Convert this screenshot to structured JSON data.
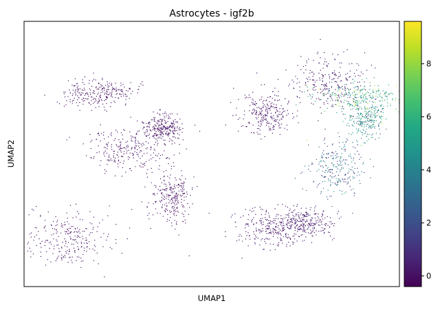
{
  "chart_data": {
    "type": "scatter",
    "title": "Astrocytes - igf2b",
    "xlabel": "UMAP1",
    "ylabel": "UMAP2",
    "show_axis_ticks": false,
    "grid": false,
    "colormap": "viridis",
    "colorbar": {
      "range": [
        -0.4,
        9.6
      ],
      "ticks": [
        0,
        2,
        4,
        6,
        8
      ],
      "tick_labels": [
        "0",
        "2",
        "4",
        "6",
        "8"
      ]
    },
    "colors": {
      "low": "#440154",
      "mid": "#21918c",
      "high": "#fde725"
    },
    "clusters": [
      {
        "x": 0.37,
        "y": 0.4,
        "value": 0.1
      },
      {
        "x": 0.64,
        "y": 0.35,
        "value": 0.1
      },
      {
        "x": 0.81,
        "y": 0.23,
        "value": 0.2
      },
      {
        "x": 0.9,
        "y": 0.28,
        "value": 5.5
      },
      {
        "x": 0.91,
        "y": 0.37,
        "value": 4.5
      },
      {
        "x": 0.83,
        "y": 0.55,
        "value": 2.5
      },
      {
        "x": 0.2,
        "y": 0.27,
        "value": 0.1
      },
      {
        "x": 0.28,
        "y": 0.48,
        "value": 0.1
      },
      {
        "x": 0.39,
        "y": 0.66,
        "value": 0.1
      },
      {
        "x": 0.75,
        "y": 0.76,
        "value": 0.3
      },
      {
        "x": 0.65,
        "y": 0.78,
        "value": 0.1
      },
      {
        "x": 0.12,
        "y": 0.82,
        "value": 0.1
      }
    ]
  }
}
